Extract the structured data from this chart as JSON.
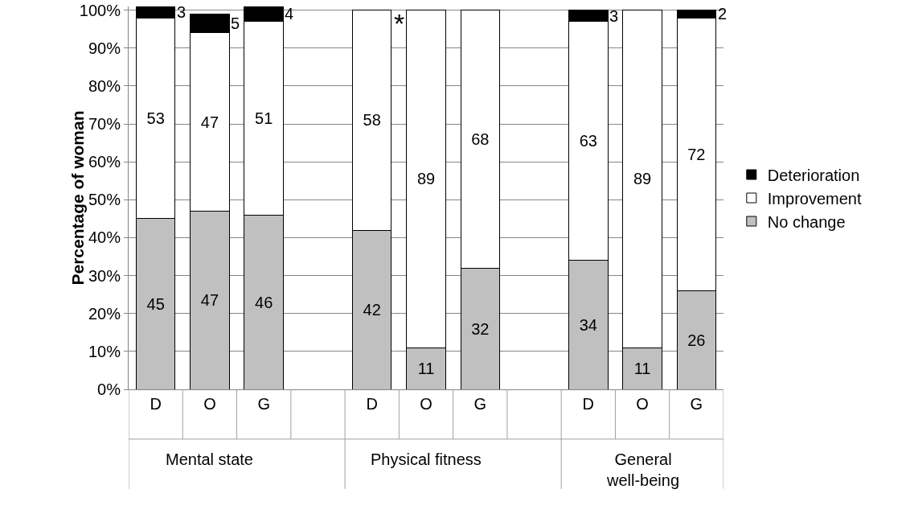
{
  "chart_data": {
    "type": "bar",
    "stacked": true,
    "ylabel": "Percentage of woman",
    "categories": [
      "D",
      "O",
      "G",
      null,
      "D",
      "O",
      "G",
      null,
      "D",
      "O",
      "G"
    ],
    "series": [
      {
        "name": "No change",
        "color": "#c0c0c0",
        "values": [
          45,
          47,
          46,
          null,
          42,
          11,
          32,
          null,
          34,
          11,
          26
        ],
        "value_labels": [
          "45",
          "47",
          "46",
          null,
          "42",
          "11",
          "32",
          null,
          "34",
          "11",
          "26"
        ]
      },
      {
        "name": "Improvement",
        "color": "#ffffff",
        "values": [
          53,
          47,
          51,
          null,
          58,
          89,
          68,
          null,
          63,
          89,
          72
        ],
        "value_labels": [
          "53",
          "47",
          "51",
          null,
          "58",
          "89",
          "68",
          null,
          "63",
          "89",
          "72"
        ]
      },
      {
        "name": "Deterioration",
        "color": "#000000",
        "values": [
          3,
          5,
          4,
          null,
          0,
          0,
          0,
          null,
          3,
          0,
          2
        ],
        "value_labels": [
          "3",
          "5",
          "4",
          null,
          null,
          null,
          null,
          null,
          "3",
          null,
          "2"
        ]
      }
    ],
    "annotations": [
      "Mental state",
      "Physical fitness",
      "General\nwell-being",
      "*"
    ],
    "ylim": [
      0,
      101
    ],
    "yticks": [
      {
        "value": 0,
        "label": "0%"
      },
      {
        "value": 10,
        "label": "10%"
      },
      {
        "value": 20,
        "label": "20%"
      },
      {
        "value": 30,
        "label": "30%"
      },
      {
        "value": 40,
        "label": "40%"
      },
      {
        "value": 50,
        "label": "50%"
      },
      {
        "value": 60,
        "label": "60%"
      },
      {
        "value": 70,
        "label": "70%"
      },
      {
        "value": 80,
        "label": "80%"
      },
      {
        "value": 90,
        "label": "90%"
      },
      {
        "value": 100,
        "label": "100%"
      }
    ],
    "grid": "y",
    "legend": "right"
  }
}
